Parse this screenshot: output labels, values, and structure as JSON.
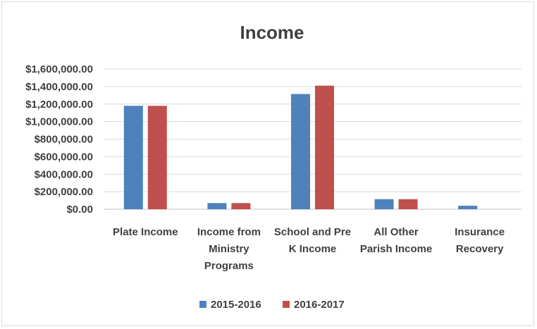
{
  "chart_data": {
    "type": "bar",
    "title": "Income",
    "categories": [
      [
        "Plate Income"
      ],
      [
        "Income from",
        "Ministry",
        "Programs"
      ],
      [
        "School and Pre",
        "K Income"
      ],
      [
        "All Other",
        "Parish Income"
      ],
      [
        "Insurance",
        "Recovery"
      ]
    ],
    "series": [
      {
        "name": "2015-2016",
        "color": "#4f81bd",
        "values": [
          1180000,
          70000,
          1315000,
          115000,
          40000
        ]
      },
      {
        "name": "2016-2017",
        "color": "#c0504d",
        "values": [
          1180000,
          70000,
          1410000,
          115000,
          0
        ]
      }
    ],
    "ylim": [
      0,
      1600000
    ],
    "yticks": [
      "$0.00",
      "$200,000.00",
      "$400,000.00",
      "$600,000.00",
      "$800,000.00",
      "$1,000,000.00",
      "$1,200,000.00",
      "$1,400,000.00",
      "$1,600,000.00"
    ],
    "grid": true,
    "legend": "bottom"
  }
}
